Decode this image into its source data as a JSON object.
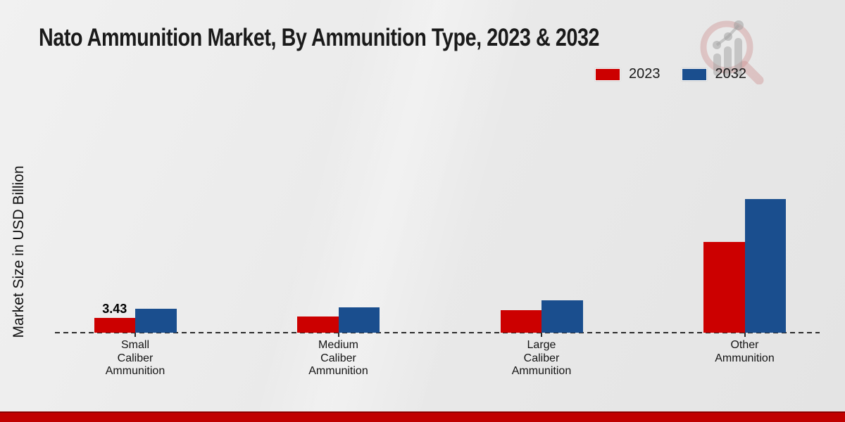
{
  "title": "Nato Ammunition Market, By Ammunition Type, 2023 & 2032",
  "y_axis_label": "Market Size in USD Billion",
  "legend": {
    "position": "top-right",
    "items": [
      {
        "label": "2023",
        "color": "#cc0000"
      },
      {
        "label": "2032",
        "color": "#1a4e8e"
      }
    ]
  },
  "chart_data": {
    "type": "bar",
    "title": "Nato Ammunition Market, By Ammunition Type, 2023 & 2032",
    "ylabel": "Market Size in USD Billion",
    "categories": [
      "Small Caliber Ammunition",
      "Medium Caliber Ammunition",
      "Large Caliber Ammunition",
      "Other Ammunition"
    ],
    "series": [
      {
        "name": "2023",
        "color": "#cc0000",
        "values": [
          3.43,
          3.76,
          5.25,
          21.0
        ]
      },
      {
        "name": "2032",
        "color": "#1a4e8e",
        "values": [
          5.5,
          5.8,
          7.5,
          31.0
        ]
      }
    ],
    "annotations": [
      {
        "series": "2023",
        "category": "Small Caliber Ammunition",
        "text": "3.43"
      }
    ],
    "grid": false,
    "baseline_style": "dashed",
    "legend_position": "top-right"
  },
  "footer": {
    "band_color": "#c00000"
  },
  "watermark": {
    "name": "market-research-magnifier-logo"
  }
}
